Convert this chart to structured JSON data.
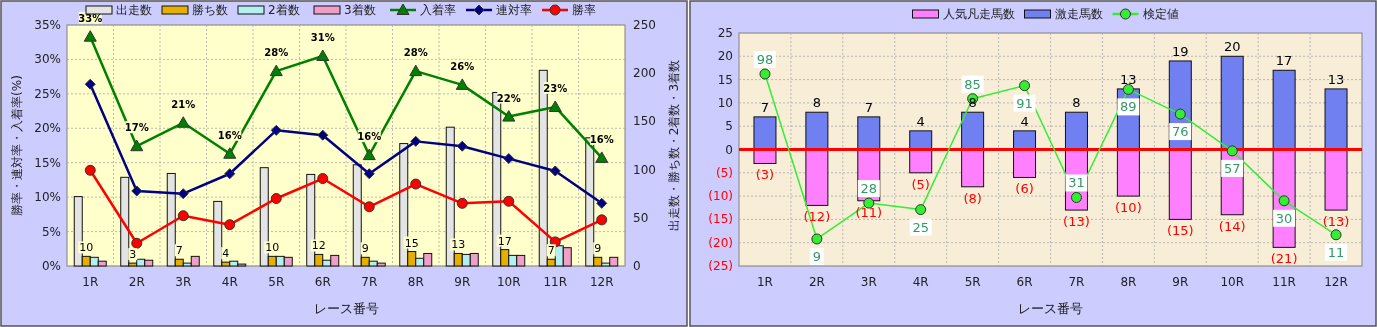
{
  "chart_data": [
    {
      "type": "bar",
      "xlabel": "レース番号",
      "ylabel": "勝率・連対率・入着率(%)",
      "y2label": "出走数・勝ち数・2着数・3着数",
      "categories": [
        "1R",
        "2R",
        "3R",
        "4R",
        "5R",
        "6R",
        "7R",
        "8R",
        "9R",
        "10R",
        "11R",
        "12R"
      ],
      "ylim": [
        0,
        35
      ],
      "yticks": [
        {
          "value": 0,
          "label": "0%"
        },
        {
          "value": 5,
          "label": "5%"
        },
        {
          "value": 10,
          "label": "10%"
        },
        {
          "value": 15,
          "label": "15%"
        },
        {
          "value": 20,
          "label": "20%"
        },
        {
          "value": 25,
          "label": "25%"
        },
        {
          "value": 30,
          "label": "30%"
        },
        {
          "value": 35,
          "label": "35%"
        }
      ],
      "y2lim": [
        0,
        250
      ],
      "y2ticks": [
        0,
        50,
        100,
        150,
        200,
        250
      ],
      "grid": true,
      "legend": "top",
      "series": [
        {
          "name": "出走数",
          "color": "#e4e4e4",
          "axis": "y2",
          "values": [
            72,
            92,
            96,
            67,
            102,
            95,
            105,
            127,
            144,
            180,
            203,
            133
          ]
        },
        {
          "name": "勝ち数",
          "color": "#e6b000",
          "axis": "y2",
          "values": [
            10,
            3,
            7,
            4,
            10,
            12,
            9,
            15,
            13,
            17,
            7,
            9
          ],
          "value_labels": [
            "10",
            "3",
            "7",
            "4",
            "10",
            "12",
            "9",
            "15",
            "13",
            "17",
            "7",
            "9"
          ]
        },
        {
          "name": "2着数",
          "color": "#b4f0f0",
          "axis": "y2",
          "values": [
            9,
            7,
            3,
            5,
            10,
            6,
            5,
            8,
            12,
            11,
            21,
            3
          ]
        },
        {
          "name": "3着数",
          "color": "#f0a0c8",
          "axis": "y2",
          "values": [
            5,
            6,
            10,
            2,
            9,
            11,
            3,
            13,
            13,
            11,
            19,
            9
          ]
        },
        {
          "name": "入着率",
          "type": "line",
          "marker": "triangle",
          "color": "#008000",
          "values": [
            33.3,
            17.4,
            20.8,
            16.3,
            28.3,
            30.5,
            16.1,
            28.3,
            26.3,
            21.7,
            23.1,
            15.7
          ],
          "value_labels": [
            "33%",
            "17%",
            "21%",
            "16%",
            "28%",
            "31%",
            "16%",
            "28%",
            "26%",
            "22%",
            "23%",
            "16%"
          ]
        },
        {
          "name": "連対率",
          "type": "line",
          "marker": "diamond",
          "color": "#000080",
          "values": [
            26.4,
            10.9,
            10.5,
            13.4,
            19.7,
            19.0,
            13.4,
            18.1,
            17.4,
            15.6,
            13.8,
            9.1
          ]
        },
        {
          "name": "勝率",
          "type": "line",
          "marker": "circle",
          "color": "#ff0000",
          "values": [
            13.9,
            3.3,
            7.3,
            6.0,
            9.8,
            12.7,
            8.6,
            11.9,
            9.1,
            9.4,
            3.5,
            6.7
          ]
        }
      ]
    },
    {
      "type": "bar",
      "xlabel": "レース番号",
      "stacked": true,
      "categories": [
        "1R",
        "2R",
        "3R",
        "4R",
        "5R",
        "6R",
        "7R",
        "8R",
        "9R",
        "10R",
        "11R",
        "12R"
      ],
      "ylim": [
        -25,
        25
      ],
      "yticks": [
        {
          "value": -25,
          "label": "(25)"
        },
        {
          "value": -20,
          "label": "(20)"
        },
        {
          "value": -15,
          "label": "(15)"
        },
        {
          "value": -10,
          "label": "(10)"
        },
        {
          "value": -5,
          "label": "(5)"
        },
        0,
        5,
        10,
        15,
        20,
        25
      ],
      "grid": true,
      "legend": "top",
      "ref_lines": [
        {
          "axis": "y",
          "value": 0,
          "color": "#ff0000"
        }
      ],
      "series": [
        {
          "name": "人気凡走馬数",
          "color": "#ff80ff",
          "values": [
            -3,
            -12,
            -11,
            -5,
            -8,
            -6,
            -13,
            -10,
            -15,
            -14,
            -21,
            -13
          ],
          "value_labels": [
            "(3)",
            "(12)",
            "(11)",
            "(5)",
            "(8)",
            "(6)",
            "(13)",
            "(10)",
            "(15)",
            "(14)",
            "(21)",
            "(13)"
          ]
        },
        {
          "name": "激走馬数",
          "color": "#7080f0",
          "values": [
            7,
            8,
            7,
            4,
            8,
            4,
            8,
            13,
            19,
            20,
            17,
            13
          ],
          "value_labels": [
            "7",
            "8",
            "7",
            "4",
            "8",
            "4",
            "8",
            "13",
            "19",
            "20",
            "17",
            "13"
          ]
        },
        {
          "name": "検定値",
          "type": "line",
          "marker": "circle",
          "color": "#33ee33",
          "values": [
            16.2,
            -19.2,
            -11.5,
            -12.9,
            10.9,
            13.7,
            -10.3,
            12.9,
            7.6,
            -0.3,
            -11.0,
            -18.3
          ]
        }
      ],
      "annotations": [
        {
          "text": "98",
          "x": "1R",
          "y": 16.2
        },
        {
          "text": "9",
          "x": "2R",
          "y": -19.2
        },
        {
          "text": "28",
          "x": "3R",
          "y": -11.5
        },
        {
          "text": "25",
          "x": "4R",
          "y": -12.9
        },
        {
          "text": "85",
          "x": "5R",
          "y": 10.9
        },
        {
          "text": "91",
          "x": "6R",
          "y": 13.7
        },
        {
          "text": "31",
          "x": "7R",
          "y": -10.3
        },
        {
          "text": "89",
          "x": "8R",
          "y": 12.9
        },
        {
          "text": "76",
          "x": "9R",
          "y": 7.6
        },
        {
          "text": "57",
          "x": "10R",
          "y": -0.3
        },
        {
          "text": "30",
          "x": "11R",
          "y": -11.0
        },
        {
          "text": "11",
          "x": "12R",
          "y": -18.3
        }
      ]
    }
  ]
}
